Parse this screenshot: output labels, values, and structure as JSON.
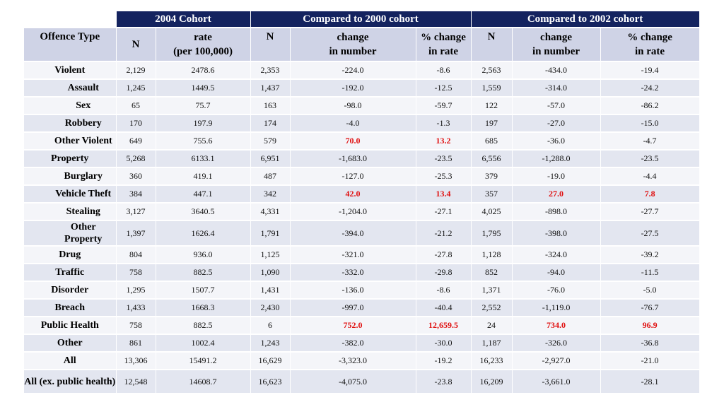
{
  "header": {
    "offence_type": "Offence Type",
    "group1": "2004 Cohort",
    "group2": "Compared to 2000 cohort",
    "group3": "Compared to 2002 cohort",
    "n": "N",
    "rate_line1": "rate",
    "rate_line2": "(per 100,000)",
    "change_line1": "change",
    "change_line2": "in number",
    "pct_line1": "% change",
    "pct_line2": "in rate"
  },
  "highlight_color": "#e01010",
  "header_band_color": "#14235f",
  "rows": [
    {
      "label": "Violent",
      "indent": false,
      "cells": [
        "2,129",
        "2478.6",
        "2,353",
        "-224.0",
        "-8.6",
        "2,563",
        "-434.0",
        "-19.4"
      ],
      "red": []
    },
    {
      "label": "Assault",
      "indent": true,
      "cells": [
        "1,245",
        "1449.5",
        "1,437",
        "-192.0",
        "-12.5",
        "1,559",
        "-314.0",
        "-24.2"
      ],
      "red": []
    },
    {
      "label": "Sex",
      "indent": true,
      "cells": [
        "65",
        "75.7",
        "163",
        "-98.0",
        "-59.7",
        "122",
        "-57.0",
        "-86.2"
      ],
      "red": []
    },
    {
      "label": "Robbery",
      "indent": true,
      "cells": [
        "170",
        "197.9",
        "174",
        "-4.0",
        "-1.3",
        "197",
        "-27.0",
        "-15.0"
      ],
      "red": []
    },
    {
      "label": "Other Violent",
      "indent": true,
      "cells": [
        "649",
        "755.6",
        "579",
        "70.0",
        "13.2",
        "685",
        "-36.0",
        "-4.7"
      ],
      "red": [
        3,
        4
      ]
    },
    {
      "label": "Property",
      "indent": false,
      "cells": [
        "5,268",
        "6133.1",
        "6,951",
        "-1,683.0",
        "-23.5",
        "6,556",
        "-1,288.0",
        "-23.5"
      ],
      "red": []
    },
    {
      "label": "Burglary",
      "indent": true,
      "cells": [
        "360",
        "419.1",
        "487",
        "-127.0",
        "-25.3",
        "379",
        "-19.0",
        "-4.4"
      ],
      "red": []
    },
    {
      "label": "Vehicle Theft",
      "indent": true,
      "cells": [
        "384",
        "447.1",
        "342",
        "42.0",
        "13.4",
        "357",
        "27.0",
        "7.8"
      ],
      "red": [
        3,
        4,
        6,
        7
      ]
    },
    {
      "label": "Stealing",
      "indent": true,
      "cells": [
        "3,127",
        "3640.5",
        "4,331",
        "-1,204.0",
        "-27.1",
        "4,025",
        "-898.0",
        "-27.7"
      ],
      "red": []
    },
    {
      "label": "Other Property",
      "indent": true,
      "tall": true,
      "cells": [
        "1,397",
        "1626.4",
        "1,791",
        "-394.0",
        "-21.2",
        "1,795",
        "-398.0",
        "-27.5"
      ],
      "red": []
    },
    {
      "label": "Drug",
      "indent": false,
      "cells": [
        "804",
        "936.0",
        "1,125",
        "-321.0",
        "-27.8",
        "1,128",
        "-324.0",
        "-39.2"
      ],
      "red": []
    },
    {
      "label": "Traffic",
      "indent": false,
      "cells": [
        "758",
        "882.5",
        "1,090",
        "-332.0",
        "-29.8",
        "852",
        "-94.0",
        "-11.5"
      ],
      "red": []
    },
    {
      "label": "Disorder",
      "indent": false,
      "cells": [
        "1,295",
        "1507.7",
        "1,431",
        "-136.0",
        "-8.6",
        "1,371",
        "-76.0",
        "-5.0"
      ],
      "red": []
    },
    {
      "label": "Breach",
      "indent": false,
      "cells": [
        "1,433",
        "1668.3",
        "2,430",
        "-997.0",
        "-40.4",
        "2,552",
        "-1,119.0",
        "-76.7"
      ],
      "red": []
    },
    {
      "label": "Public Health",
      "indent": false,
      "cells": [
        "758",
        "882.5",
        "6",
        "752.0",
        "12,659.5",
        "24",
        "734.0",
        "96.9"
      ],
      "red": [
        3,
        4,
        6,
        7
      ]
    },
    {
      "label": "Other",
      "indent": false,
      "cells": [
        "861",
        "1002.4",
        "1,243",
        "-382.0",
        "-30.0",
        "1,187",
        "-326.0",
        "-36.8"
      ],
      "red": []
    },
    {
      "label": "All",
      "indent": false,
      "cells": [
        "13,306",
        "15491.2",
        "16,629",
        "-3,323.0",
        "-19.2",
        "16,233",
        "-2,927.0",
        "-21.0"
      ],
      "red": []
    },
    {
      "label": "All (ex. public health)",
      "indent": false,
      "tall": true,
      "cells": [
        "12,548",
        "14608.7",
        "16,623",
        "-4,075.0",
        "-23.8",
        "16,209",
        "-3,661.0",
        "-28.1"
      ],
      "red": []
    }
  ]
}
